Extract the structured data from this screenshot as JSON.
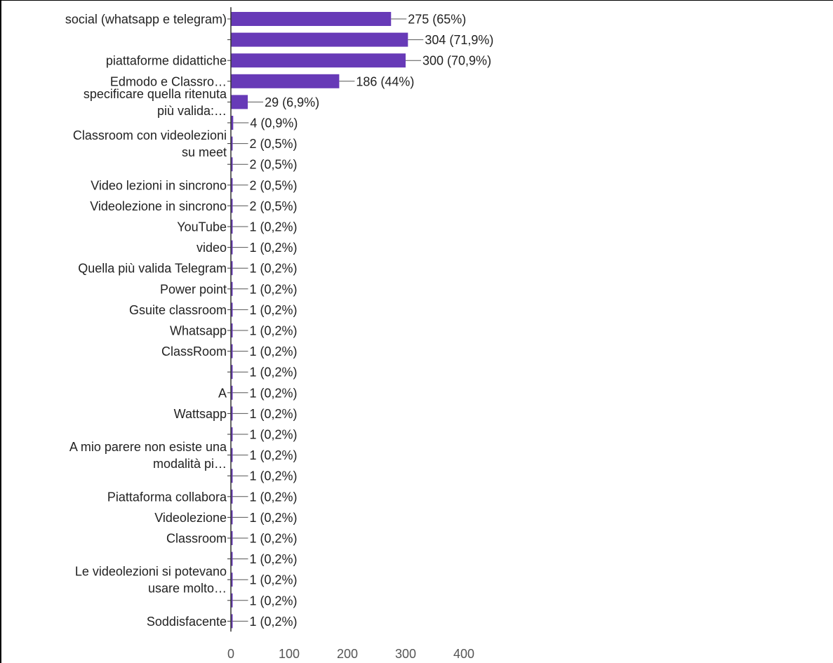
{
  "chart_data": {
    "type": "bar",
    "orientation": "horizontal",
    "bar_color": "#673ab7",
    "grid": false,
    "xlim": [
      0,
      400
    ],
    "x_ticks": [
      "0",
      "100",
      "200",
      "300",
      "400"
    ],
    "categories": [
      [
        "social (whatsapp e telegram)"
      ],
      [],
      [
        "piattaforme didattiche"
      ],
      [
        "Edmodo e Classro…"
      ],
      [
        "specificare quella ritenuta",
        "più valida:…"
      ],
      [
        "Classroom con videolezioni",
        "su meet"
      ],
      [],
      [],
      [
        "Video lezioni in sincrono"
      ],
      [
        "Videolezione in sincrono"
      ],
      [
        "YouTube"
      ],
      [
        "video"
      ],
      [
        "Quella più valida Telegram"
      ],
      [
        "Power point"
      ],
      [
        "Gsuite classroom"
      ],
      [
        "Whatsapp"
      ],
      [
        "ClassRoom"
      ],
      [],
      [
        "A"
      ],
      [
        "Wattsapp"
      ],
      [
        "A mio parere non esiste una",
        "modalità pi…"
      ],
      [],
      [],
      [
        "Piattaforma collabora"
      ],
      [
        "Videolezione"
      ],
      [
        "Classroom"
      ],
      [
        "Le videolezioni si potevano",
        "usare molto…"
      ],
      [],
      [],
      [
        "Soddisfacente"
      ]
    ],
    "values": [
      275,
      304,
      300,
      186,
      29,
      4,
      2,
      2,
      2,
      2,
      1,
      1,
      1,
      1,
      1,
      1,
      1,
      1,
      1,
      1,
      1,
      1,
      1,
      1,
      1,
      1,
      1,
      1,
      1,
      1
    ],
    "value_labels": [
      "275 (65%)",
      "304 (71,9%)",
      "300 (70,9%)",
      "186 (44%)",
      "29 (6,9%)",
      "4 (0,9%)",
      "2 (0,5%)",
      "2 (0,5%)",
      "2 (0,5%)",
      "2 (0,5%)",
      "1 (0,2%)",
      "1 (0,2%)",
      "1 (0,2%)",
      "1 (0,2%)",
      "1 (0,2%)",
      "1 (0,2%)",
      "1 (0,2%)",
      "1 (0,2%)",
      "1 (0,2%)",
      "1 (0,2%)",
      "1 (0,2%)",
      "1 (0,2%)",
      "1 (0,2%)",
      "1 (0,2%)",
      "1 (0,2%)",
      "1 (0,2%)",
      "1 (0,2%)",
      "1 (0,2%)",
      "1 (0,2%)",
      "1 (0,2%)"
    ],
    "title": "",
    "xlabel": "",
    "ylabel": ""
  }
}
